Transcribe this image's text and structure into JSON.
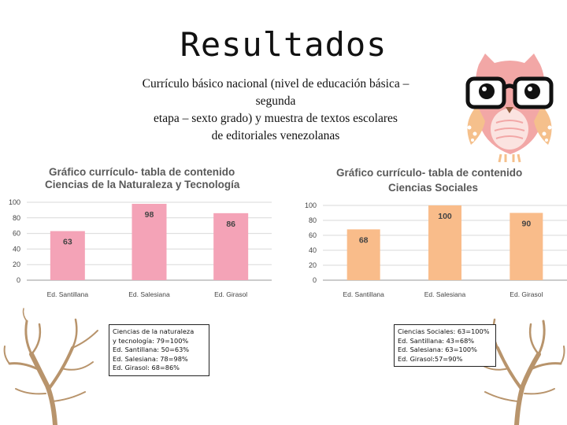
{
  "page": {
    "title": "Resultados",
    "subtitle_lines": [
      "Currículo básico nacional (nivel de educación básica –",
      "segunda",
      "etapa – sexto grado) y muestra de textos escolares",
      "de editoriales venezolanas"
    ]
  },
  "notes": {
    "left": [
      "Ciencias de la naturaleza",
      "y tecnología: 79=100%",
      "Ed. Santillana: 50=63%",
      "Ed. Salesiana: 78=98%",
      "Ed. Girasol: 68=86%"
    ],
    "right": [
      "Ciencias Sociales: 63=100%",
      "Ed. Santillana: 43=68%",
      "Ed. Salesiana: 63=100%",
      "Ed. Girasol:57=90%"
    ]
  },
  "chart_data": [
    {
      "type": "bar",
      "title_lines": [
        "Gráfico currículo- tabla de contenido",
        "Ciencias de la Naturaleza y Tecnología"
      ],
      "categories": [
        "Ed. Santillana",
        "Ed. Salesiana",
        "Ed. Girasol"
      ],
      "values": [
        63,
        98,
        86
      ],
      "ylim": [
        0,
        100
      ],
      "yticks": [
        0,
        20,
        40,
        60,
        80,
        100
      ],
      "grid": true,
      "bar_color": "#f4a3b7"
    },
    {
      "type": "bar",
      "title_lines": [
        "Gráfico currículo- tabla de contenido",
        "Ciencias Sociales"
      ],
      "categories": [
        "Ed. Santillana",
        "Ed. Salesiana",
        "Ed. Girasol"
      ],
      "values": [
        68,
        100,
        90
      ],
      "ylim": [
        0,
        100
      ],
      "yticks": [
        0,
        20,
        40,
        60,
        80,
        100
      ],
      "grid": true,
      "bar_color": "#f9bc8a"
    }
  ],
  "colors": {
    "owl_body": "#f2a7a6",
    "owl_wing": "#f5c08c",
    "tree": "#b8946c"
  },
  "icons": {
    "owl": "owl-with-glasses-icon",
    "tree": "bare-tree-icon"
  }
}
